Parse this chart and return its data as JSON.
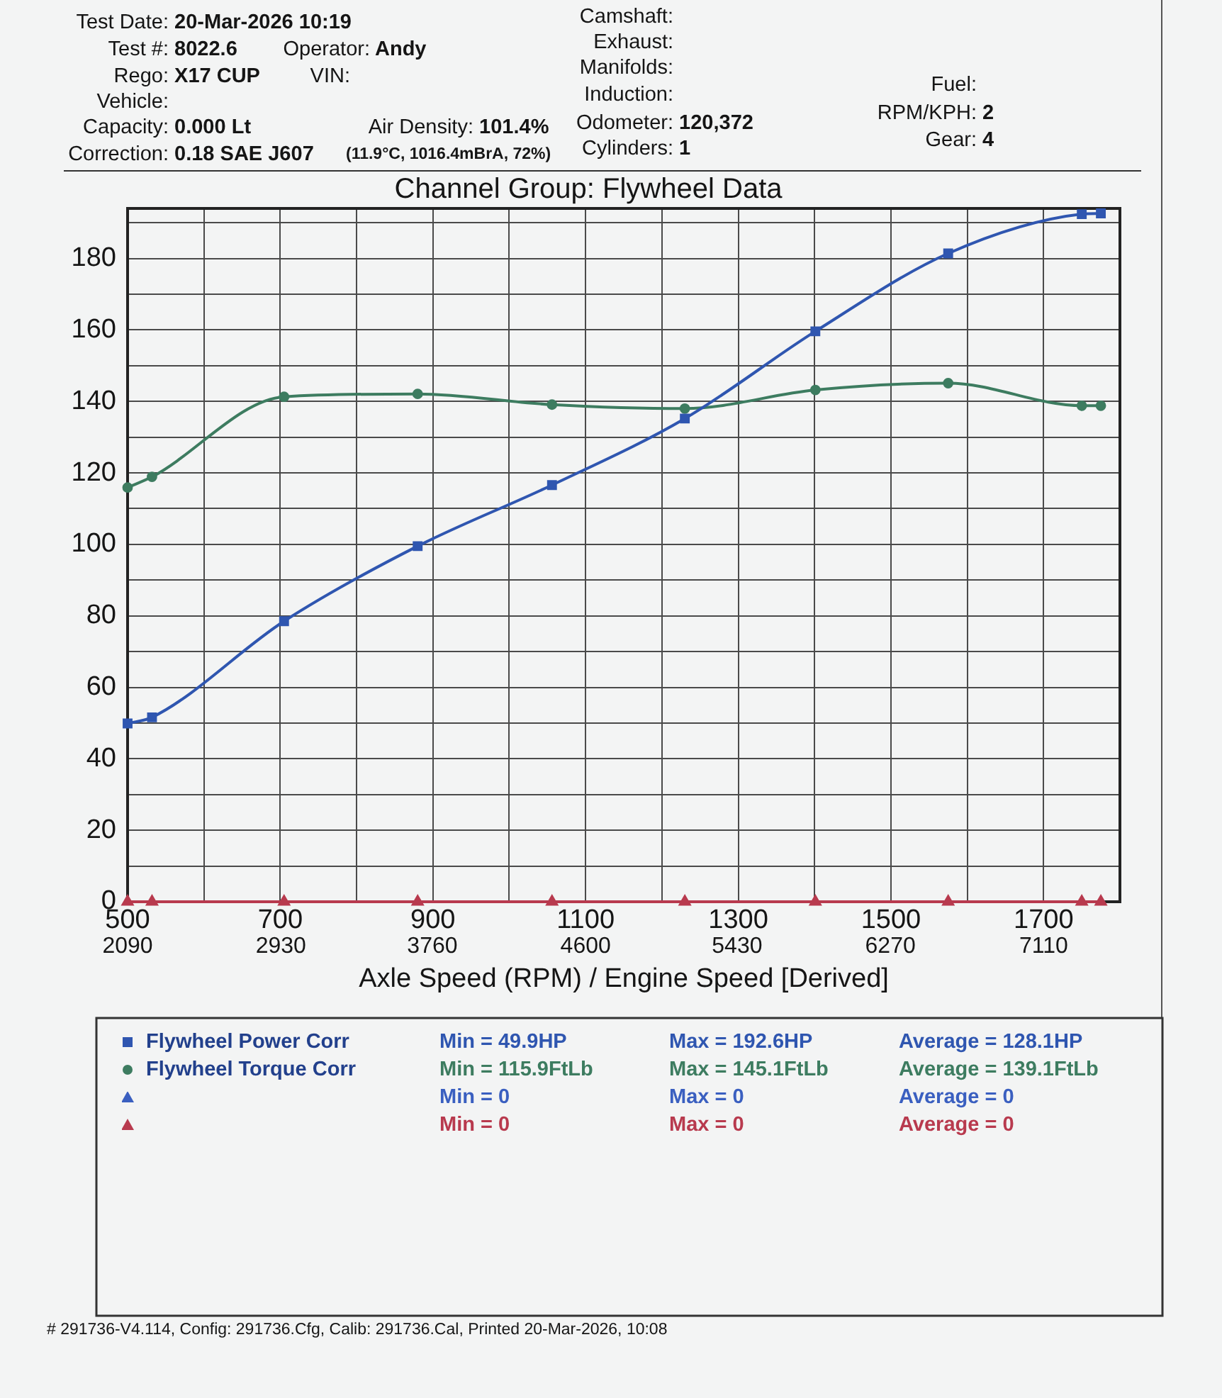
{
  "chart_data": {
    "type": "line",
    "title": "Channel Group: Flywheel Data",
    "xlabel": "Axle Speed (RPM) / Engine Speed [Derived]",
    "x": [
      500,
      532,
      705,
      880,
      1056,
      1230,
      1401,
      1575,
      1750,
      1775
    ],
    "series": [
      {
        "name": "Flywheel Power Corr",
        "color": "#2f56b0",
        "marker": "square",
        "values": [
          49.9,
          51.6,
          78.5,
          99.5,
          116.6,
          135.2,
          159.6,
          181.4,
          192.4,
          192.6
        ]
      },
      {
        "name": "Flywheel Torque Corr",
        "color": "#3d7c60",
        "marker": "circle",
        "values": [
          115.9,
          118.9,
          141.3,
          142.1,
          139.1,
          138.0,
          143.2,
          145.1,
          138.8,
          138.8
        ]
      },
      {
        "color": "#3a5fc0",
        "marker": "triangle",
        "values": [
          null,
          null,
          null,
          null,
          null,
          null,
          null,
          null,
          null,
          null
        ]
      },
      {
        "color": "#b83a4e",
        "marker": "triangle",
        "values": [
          0,
          0,
          0,
          0,
          0,
          0,
          0,
          0,
          0,
          0
        ]
      }
    ],
    "xlim": [
      500,
      1800
    ],
    "xticks": [
      500,
      {
        "value": 600,
        "label": null
      },
      700,
      {
        "value": 800,
        "label": null
      },
      900,
      {
        "value": 1000,
        "label": null
      },
      1100,
      {
        "value": 1200,
        "label": null
      },
      1300,
      {
        "value": 1400,
        "label": null
      },
      1500,
      {
        "value": 1600,
        "label": null
      },
      1700
    ],
    "x2lim": [
      2090,
      7528
    ],
    "x2ticks": [
      2090,
      2930,
      3760,
      4600,
      5430,
      6270,
      7110
    ],
    "ylim": [
      0,
      194
    ],
    "yticks": [
      0,
      {
        "value": 10,
        "label": null
      },
      20,
      {
        "value": 30,
        "label": null
      },
      40,
      {
        "value": 50,
        "label": null
      },
      60,
      {
        "value": 70,
        "label": null
      },
      80,
      {
        "value": 90,
        "label": null
      },
      100,
      {
        "value": 110,
        "label": null
      },
      120,
      {
        "value": 130,
        "label": null
      },
      140,
      {
        "value": 150,
        "label": null
      },
      160,
      {
        "value": 170,
        "label": null
      },
      180,
      {
        "value": 190,
        "label": null
      }
    ],
    "grid": true,
    "legend": "bottom",
    "annotations": [
      "Test Date: 20-Mar-2026 10:19",
      "Test #: 8022.6",
      "Operator: Andy",
      "Rego: X17 CUP",
      "VIN:",
      "Vehicle:",
      "Capacity: 0.000 Lt",
      "Air Density: 101.4%",
      "Correction: 0.18 SAE J607",
      "(11.9°C, 1016.4mBrA, 72%)",
      "Camshaft:",
      "Exhaust:",
      "Manifolds:",
      "Induction:",
      "Odometer: 120,372",
      "Cylinders: 1",
      "Fuel:",
      "RPM/KPH: 2",
      "Gear: 4",
      "# 291736-V4.114, Config: 291736.Cfg, Calib: 291736.Cal, Printed 20-Mar-2026, 10:08",
      "Min = 49.9HP",
      "Max = 192.6HP",
      "Average = 128.1HP",
      "Min = 115.9FtLb",
      "Max = 145.1FtLb",
      "Average = 139.1FtLb",
      "Min = 0",
      "Max = 0",
      "Average = 0",
      "Min = 0",
      "Max = 0",
      "Average = 0"
    ]
  }
}
